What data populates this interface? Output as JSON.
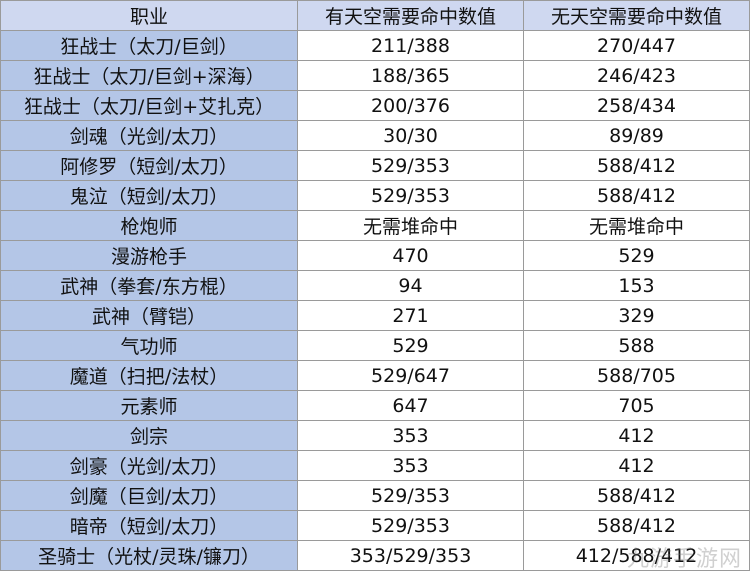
{
  "headers": [
    "职业",
    "有天空需要命中数值",
    "无天空需要命中数值"
  ],
  "rows": [
    [
      "狂战士（太刀/巨剑）",
      "211/388",
      "270/447"
    ],
    [
      "狂战士（太刀/巨剑+深海）",
      "188/365",
      "246/423"
    ],
    [
      "狂战士（太刀/巨剑+艾扎克）",
      "200/376",
      "258/434"
    ],
    [
      "剑魂（光剑/太刀）",
      "30/30",
      "89/89"
    ],
    [
      "阿修罗（短剑/太刀）",
      "529/353",
      "588/412"
    ],
    [
      "鬼泣（短剑/太刀）",
      "529/353",
      "588/412"
    ],
    [
      "枪炮师",
      "无需堆命中",
      "无需堆命中"
    ],
    [
      "漫游枪手",
      "470",
      "529"
    ],
    [
      "武神（拳套/东方棍）",
      "94",
      "153"
    ],
    [
      "武神（臂铠）",
      "271",
      "329"
    ],
    [
      "气功师",
      "529",
      "588"
    ],
    [
      "魔道（扫把/法杖）",
      "529/647",
      "588/705"
    ],
    [
      "元素师",
      "647",
      "705"
    ],
    [
      "剑宗",
      "353",
      "412"
    ],
    [
      "剑豪（光剑/太刀）",
      "353",
      "412"
    ],
    [
      "剑魔（巨剑/太刀）",
      "529/353",
      "588/412"
    ],
    [
      "暗帝（短剑/太刀）",
      "529/353",
      "588/412"
    ],
    [
      "圣骑士（光杖/灵珠/镰刀）",
      "353/529/353",
      "412/588/412"
    ]
  ],
  "watermark": "九游手游网",
  "colors": {
    "job_column_bg": "#b4c6e7",
    "header_bg": "#cfd8f0",
    "border": "#9a9a9a"
  }
}
